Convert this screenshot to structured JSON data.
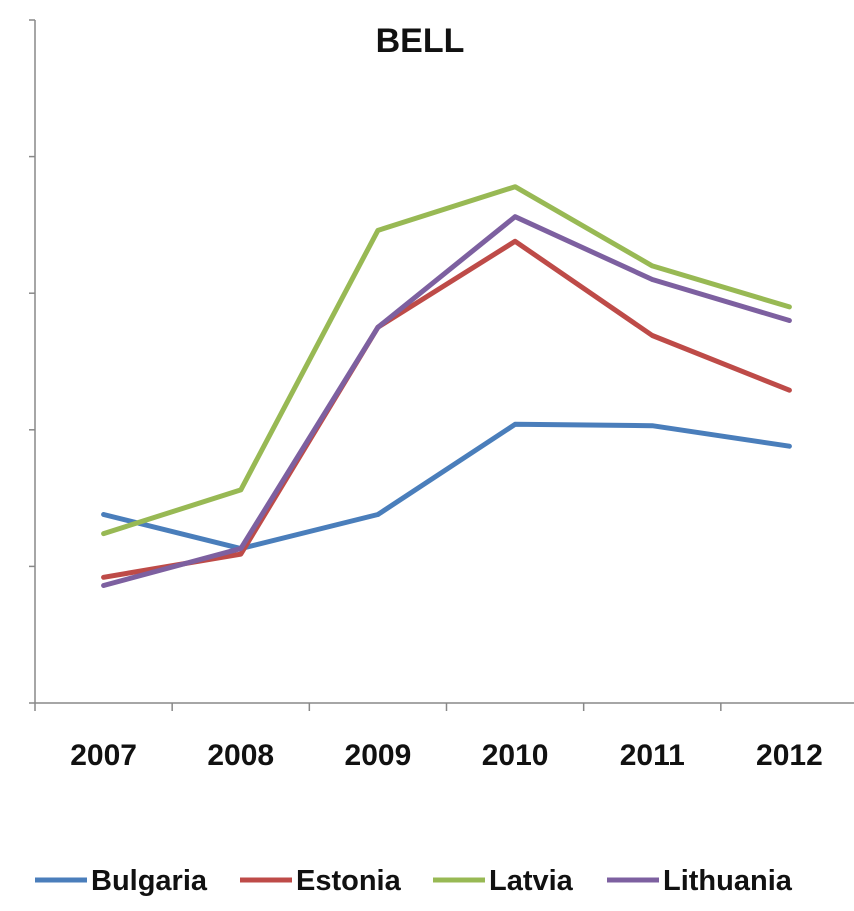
{
  "chart_data": {
    "type": "line",
    "title": "BELL",
    "xlabel": "",
    "ylabel": "",
    "categories": [
      "2007",
      "2008",
      "2009",
      "2010",
      "2011",
      "2012"
    ],
    "ylim": [
      0,
      5
    ],
    "y_tick_labels_visible": false,
    "grid": false,
    "legend": "bottom",
    "series": [
      {
        "name": "Bulgaria",
        "color": "#4a7ebb",
        "values": [
          1.38,
          1.13,
          1.38,
          2.04,
          2.03,
          1.88
        ]
      },
      {
        "name": "Estonia",
        "color": "#be4b48",
        "values": [
          0.92,
          1.09,
          2.75,
          3.38,
          2.69,
          2.29
        ]
      },
      {
        "name": "Latvia",
        "color": "#98b954",
        "values": [
          1.24,
          1.56,
          3.46,
          3.78,
          3.2,
          2.9
        ]
      },
      {
        "name": "Lithuania",
        "color": "#7d60a0",
        "values": [
          0.86,
          1.13,
          2.75,
          3.56,
          3.1,
          2.8
        ]
      }
    ]
  }
}
